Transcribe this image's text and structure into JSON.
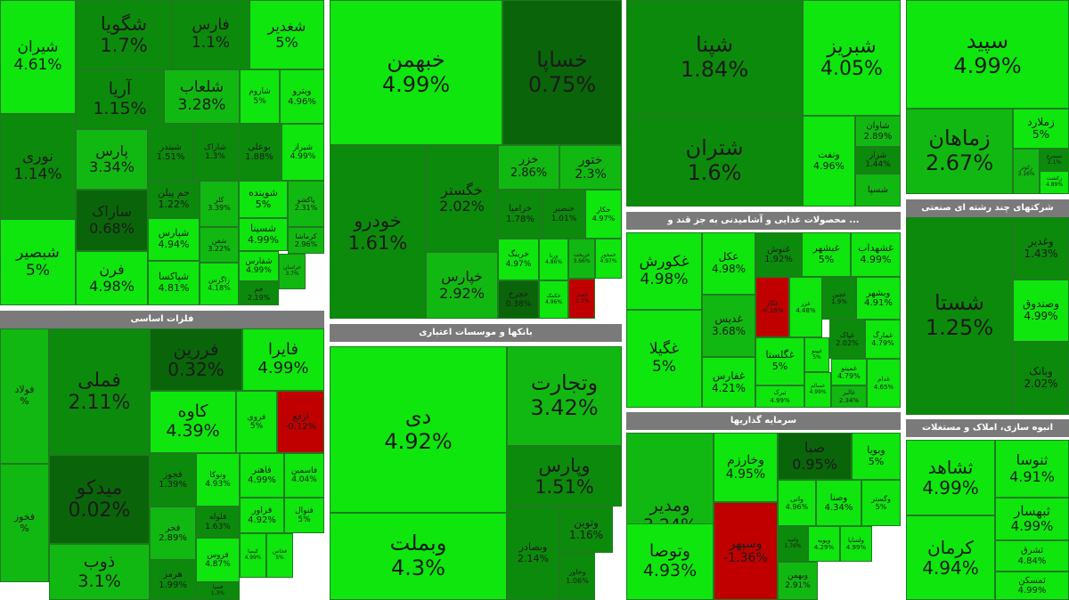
{
  "chart_data": {
    "type": "treemap",
    "colors": {
      "up": "#0ee60e",
      "mid": "#12b812",
      "dim": "#0c8a0c",
      "flat": "#0a650a",
      "down": "#c00000"
    },
    "sectors": [
      {
        "key": "s1",
        "header": "",
        "tiles": [
          {
            "symbol": "شیران",
            "change": "4.61%"
          },
          {
            "symbol": "شگویا",
            "change": "1.7%"
          },
          {
            "symbol": "فارس",
            "change": "1.1%"
          },
          {
            "symbol": "شغدیر",
            "change": "5%"
          },
          {
            "symbol": "آریا",
            "change": "1.15%"
          },
          {
            "symbol": "شلعاب",
            "change": "3.28%"
          },
          {
            "symbol": "شاروم",
            "change": "5%"
          },
          {
            "symbol": "وبترو",
            "change": "4.96%"
          },
          {
            "symbol": "نوری",
            "change": "1.14%"
          },
          {
            "symbol": "پارس",
            "change": "3.34%"
          },
          {
            "symbol": "شبندر",
            "change": "1.51%"
          },
          {
            "symbol": "شاراک",
            "change": "1.3%"
          },
          {
            "symbol": "بوعلی",
            "change": "1.88%"
          },
          {
            "symbol": "شیراز",
            "change": "4.99%"
          },
          {
            "symbol": "ساراک",
            "change": "0.68%"
          },
          {
            "symbol": "حم پیلن",
            "change": "1.22%"
          },
          {
            "symbol": "کلر",
            "change": "3.39%"
          },
          {
            "symbol": "شوینده",
            "change": "5%"
          },
          {
            "symbol": "پاکشو",
            "change": "2.31%"
          },
          {
            "symbol": "شبصیر",
            "change": "5%"
          },
          {
            "symbol": "شپارس",
            "change": "4.94%"
          },
          {
            "symbol": "شفن",
            "change": "3.22%"
          },
          {
            "symbol": "شسینا",
            "change": "4.99%"
          },
          {
            "symbol": "کرماشا",
            "change": "2.96%"
          },
          {
            "symbol": "فرن",
            "change": "4.98%"
          },
          {
            "symbol": "شپاکسا",
            "change": "4.81%"
          },
          {
            "symbol": "زاگرس",
            "change": "4.18%"
          },
          {
            "symbol": "شفارس",
            "change": "4.99%"
          },
          {
            "symbol": "جم",
            "change": "2.19%"
          },
          {
            "symbol": "خراسان",
            "change": "3.7%"
          }
        ]
      },
      {
        "key": "s2",
        "header": "",
        "tiles": [
          {
            "symbol": "خبهمن",
            "change": "4.99%"
          },
          {
            "symbol": "خساپا",
            "change": "0.75%"
          },
          {
            "symbol": "خودرو",
            "change": "1.61%"
          },
          {
            "symbol": "خگستر",
            "change": "2.02%"
          },
          {
            "symbol": "خزر",
            "change": "2.86%"
          },
          {
            "symbol": "ختور",
            "change": "2.3%"
          },
          {
            "symbol": "خرامیا",
            "change": "1.78%"
          },
          {
            "symbol": "خنصیر",
            "change": "1.01%"
          },
          {
            "symbol": "خکار",
            "change": "4.97%"
          },
          {
            "symbol": "خپارس",
            "change": "2.92%"
          },
          {
            "symbol": "خرینگ",
            "change": "4.97%"
          },
          {
            "symbol": "ورنا",
            "change": "4.86%"
          },
          {
            "symbol": "خریخت",
            "change": "3.66%"
          },
          {
            "symbol": "خمحور",
            "change": "4.97%"
          },
          {
            "symbol": "خچرخ",
            "change": "0.38%"
          },
          {
            "symbol": "خکمک",
            "change": "4.96%"
          },
          {
            "symbol": "خعمر",
            "change": "-1.2%"
          }
        ]
      },
      {
        "key": "s3",
        "header": "",
        "tiles": [
          {
            "symbol": "شپنا",
            "change": "1.84%"
          },
          {
            "symbol": "شبریز",
            "change": "4.05%"
          },
          {
            "symbol": "شتران",
            "change": "1.6%"
          },
          {
            "symbol": "ونفت",
            "change": "4.96%"
          },
          {
            "symbol": "شاوان",
            "change": "2.89%"
          },
          {
            "symbol": "شراز",
            "change": "1.44%"
          },
          {
            "symbol": "شسپا",
            "change": ""
          }
        ]
      },
      {
        "key": "s4",
        "header": "",
        "tiles": [
          {
            "symbol": "سپید",
            "change": "4.99%"
          },
          {
            "symbol": "زماهان",
            "change": "2.67%"
          },
          {
            "symbol": "زملارد",
            "change": "5%"
          },
          {
            "symbol": "زکوثر",
            "change": "3.16%"
          },
          {
            "symbol": "سیمرغ",
            "change": "2.1%"
          },
          {
            "symbol": "زکشت",
            "change": "4.89%"
          }
        ]
      },
      {
        "key": "s5",
        "header": "... محصولات غذایی و آشامیدنی به جز قند و",
        "tiles": [
          {
            "symbol": "غکورش",
            "change": "4.98%"
          },
          {
            "symbol": "عکل",
            "change": "4.98%"
          },
          {
            "symbol": "غنوش",
            "change": "1.92%"
          },
          {
            "symbol": "غبشهر",
            "change": "5%"
          },
          {
            "symbol": "غشهداب",
            "change": "4.99%"
          },
          {
            "symbol": "غدیس",
            "change": "3.68%"
          },
          {
            "symbol": "غگاز",
            "change": "-0.16%"
          },
          {
            "symbol": "غزر",
            "change": "4.48%"
          },
          {
            "symbol": "غچین",
            "change": "1.9%"
          },
          {
            "symbol": "وبشهر",
            "change": "4.91%"
          },
          {
            "symbol": "غگیلا",
            "change": "5%"
          },
          {
            "symbol": "غگلستا",
            "change": "5%"
          },
          {
            "symbol": "غپینو",
            "change": "5%"
          },
          {
            "symbol": "غپاک",
            "change": "2.02%"
          },
          {
            "symbol": "غمارگ",
            "change": "4.79%"
          },
          {
            "symbol": "غفارس",
            "change": "4.21%"
          },
          {
            "symbol": "تبرک",
            "change": "4.99%"
          },
          {
            "symbol": "غسالم",
            "change": "4.99%"
          },
          {
            "symbol": "غمینو",
            "change": "4.79%"
          },
          {
            "symbol": "غالبر",
            "change": "2.34%"
          },
          {
            "symbol": "غدام",
            "change": "4.65%"
          }
        ]
      },
      {
        "key": "s6",
        "header": "شرکتهای چند رشته ای صنعتی",
        "tiles": [
          {
            "symbol": "شستا",
            "change": "1.25%"
          },
          {
            "symbol": "وغدیر",
            "change": "1.43%"
          },
          {
            "symbol": "وصندوق",
            "change": "4.99%"
          },
          {
            "symbol": "وبانک",
            "change": "2.02%"
          }
        ]
      },
      {
        "key": "s7",
        "header": "فلزات اساسی",
        "tiles": [
          {
            "symbol": "فولاد",
            "change": "%"
          },
          {
            "symbol": "فملی",
            "change": "2.11%"
          },
          {
            "symbol": "فررین",
            "change": "0.32%"
          },
          {
            "symbol": "فایرا",
            "change": "4.99%"
          },
          {
            "symbol": "کاوه",
            "change": "4.39%"
          },
          {
            "symbol": "فروی",
            "change": "5%"
          },
          {
            "symbol": "ارفع",
            "change": "-0.12%"
          },
          {
            "symbol": "فخوز",
            "change": "%"
          },
          {
            "symbol": "میدکو",
            "change": "0.02%"
          },
          {
            "symbol": "فجوز",
            "change": "1.39%"
          },
          {
            "symbol": "ونوکا",
            "change": "4.93%"
          },
          {
            "symbol": "فاهنر",
            "change": "4.99%"
          },
          {
            "symbol": "فاسمین",
            "change": "4.04%"
          },
          {
            "symbol": "فجر",
            "change": "2.89%"
          },
          {
            "symbol": "فلوله",
            "change": "1.63%"
          },
          {
            "symbol": "فراور",
            "change": "4.92%"
          },
          {
            "symbol": "فنوال",
            "change": "5%"
          },
          {
            "symbol": "ذوب",
            "change": "3.1%"
          },
          {
            "symbol": "فروس",
            "change": "4.87%"
          },
          {
            "symbol": "کیمیا",
            "change": "4.99%"
          },
          {
            "symbol": "فخاس",
            "change": "5%"
          },
          {
            "symbol": "هرمز",
            "change": "1.99%"
          },
          {
            "symbol": "فسپا",
            "change": "1.3%"
          }
        ]
      },
      {
        "key": "s8",
        "header": "بانکها و موسسات اعتباری",
        "tiles": [
          {
            "symbol": "دی",
            "change": "4.92%"
          },
          {
            "symbol": "وتجارت",
            "change": "3.42%"
          },
          {
            "symbol": "وپارس",
            "change": "1.51%"
          },
          {
            "symbol": "وبملت",
            "change": "4.3%"
          },
          {
            "symbol": "وبصادر",
            "change": "2.14%"
          },
          {
            "symbol": "وتوبن",
            "change": "1.16%"
          },
          {
            "symbol": "وخاور",
            "change": "1.06%"
          }
        ]
      },
      {
        "key": "s9",
        "header": "سرمایه گذاریها",
        "tiles": [
          {
            "symbol": "ومدیر",
            "change": "3.24%"
          },
          {
            "symbol": "وخارزم",
            "change": "4.95%"
          },
          {
            "symbol": "صبا",
            "change": "0.95%"
          },
          {
            "symbol": "وبویا",
            "change": "5%"
          },
          {
            "symbol": "وانی",
            "change": "4.96%"
          },
          {
            "symbol": "وصنا",
            "change": "4.34%"
          },
          {
            "symbol": "وگستر",
            "change": "5%"
          },
          {
            "symbol": "وتوصا",
            "change": "4.93%"
          },
          {
            "symbol": "وسپهر",
            "change": "-1.36%"
          },
          {
            "symbol": "وامید",
            "change": "1.76%"
          },
          {
            "symbol": "وپویه",
            "change": "4.29%"
          },
          {
            "symbol": "ولساپا",
            "change": "4.99%"
          },
          {
            "symbol": "وبهمن",
            "change": "2.91%"
          }
        ]
      },
      {
        "key": "s10",
        "header": "انبوه سازی، املاک و مستغلات",
        "tiles": [
          {
            "symbol": "ثشاهد",
            "change": "4.99%"
          },
          {
            "symbol": "ثنوسا",
            "change": "4.91%"
          },
          {
            "symbol": "ثبهسار",
            "change": "4.99%"
          },
          {
            "symbol": "کرمان",
            "change": "4.94%"
          },
          {
            "symbol": "ثشرق",
            "change": "4.84%"
          },
          {
            "symbol": "ثمسکن",
            "change": "4.99%"
          }
        ]
      }
    ]
  }
}
